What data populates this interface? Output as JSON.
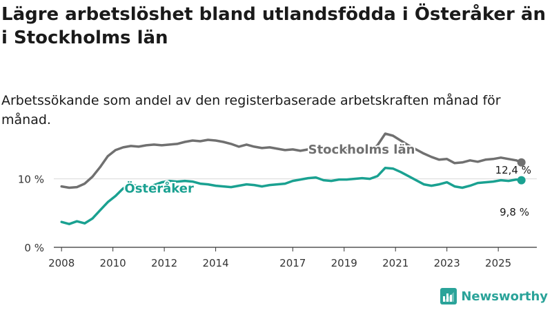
{
  "title": "Lägre arbetslöshet bland utlandsfödda i Österåker än i Stockholms län",
  "subtitle": "Arbetssökande som andel av den registerbaserade arbetskraften månad för månad.",
  "brand": {
    "name": "Newsworthy",
    "icon": "bar-chart-logo-icon"
  },
  "colors": {
    "stockholm": "#707070",
    "osteraker": "#1aa191",
    "grid": "#d9d9d9",
    "axis": "#333333"
  },
  "chart_data": {
    "type": "line",
    "xlim": [
      2007.7,
      2026.5
    ],
    "ylim": [
      0,
      16
    ],
    "x_ticks": [
      {
        "value": 2008,
        "label": "2008"
      },
      {
        "value": 2010,
        "label": "2010"
      },
      {
        "value": 2012,
        "label": "2012"
      },
      {
        "value": 2014,
        "label": "2014"
      },
      {
        "value": 2017,
        "label": "2017"
      },
      {
        "value": 2019,
        "label": "2019"
      },
      {
        "value": 2021,
        "label": "2021"
      },
      {
        "value": 2023,
        "label": "2023"
      },
      {
        "value": 2025,
        "label": "2025"
      }
    ],
    "y_ticks": [
      {
        "value": 0,
        "label": "0 %"
      },
      {
        "value": 10,
        "label": "10 %"
      }
    ],
    "series": [
      {
        "name": "Stockholms län",
        "label": "Stockholms län",
        "end_label": "12,4 %",
        "color_key": "stockholm",
        "x": [
          2008.0,
          2008.3,
          2008.6,
          2008.9,
          2009.2,
          2009.5,
          2009.8,
          2010.1,
          2010.4,
          2010.7,
          2011.0,
          2011.3,
          2011.6,
          2011.9,
          2012.2,
          2012.5,
          2012.8,
          2013.1,
          2013.4,
          2013.7,
          2014.0,
          2014.3,
          2014.6,
          2014.9,
          2015.2,
          2015.5,
          2015.8,
          2016.1,
          2016.4,
          2016.7,
          2017.0,
          2017.3,
          2017.6,
          2017.9,
          2018.2,
          2018.5,
          2018.8,
          2019.1,
          2019.4,
          2019.7,
          2020.0,
          2020.3,
          2020.6,
          2020.9,
          2021.2,
          2021.5,
          2021.8,
          2022.1,
          2022.4,
          2022.7,
          2023.0,
          2023.3,
          2023.6,
          2023.9,
          2024.2,
          2024.5,
          2024.8,
          2025.1,
          2025.4,
          2025.7,
          2025.9
        ],
        "y": [
          8.9,
          8.7,
          8.8,
          9.3,
          10.3,
          11.7,
          13.3,
          14.2,
          14.6,
          14.8,
          14.7,
          14.9,
          15.0,
          14.9,
          15.0,
          15.1,
          15.4,
          15.6,
          15.5,
          15.7,
          15.6,
          15.4,
          15.1,
          14.7,
          15.0,
          14.7,
          14.5,
          14.6,
          14.4,
          14.2,
          14.3,
          14.1,
          14.3,
          14.4,
          14.5,
          14.4,
          14.6,
          14.3,
          14.1,
          13.9,
          14.0,
          14.9,
          16.6,
          16.3,
          15.6,
          14.9,
          14.3,
          13.7,
          13.2,
          12.8,
          12.9,
          12.3,
          12.4,
          12.7,
          12.5,
          12.8,
          12.9,
          13.1,
          12.9,
          12.7,
          12.4
        ]
      },
      {
        "name": "Österåker",
        "label": "Österåker",
        "end_label": "9,8 %",
        "color_key": "osteraker",
        "x": [
          2008.0,
          2008.3,
          2008.6,
          2008.9,
          2009.2,
          2009.5,
          2009.8,
          2010.1,
          2010.4,
          2010.7,
          2011.0,
          2011.3,
          2011.6,
          2011.9,
          2012.2,
          2012.5,
          2012.8,
          2013.1,
          2013.4,
          2013.7,
          2014.0,
          2014.3,
          2014.6,
          2014.9,
          2015.2,
          2015.5,
          2015.8,
          2016.1,
          2016.4,
          2016.7,
          2017.0,
          2017.3,
          2017.6,
          2017.9,
          2018.2,
          2018.5,
          2018.8,
          2019.1,
          2019.4,
          2019.7,
          2020.0,
          2020.3,
          2020.6,
          2020.9,
          2021.2,
          2021.5,
          2021.8,
          2022.1,
          2022.4,
          2022.7,
          2023.0,
          2023.3,
          2023.6,
          2023.9,
          2024.2,
          2024.5,
          2024.8,
          2025.1,
          2025.4,
          2025.7,
          2025.9
        ],
        "y": [
          3.7,
          3.4,
          3.8,
          3.5,
          4.2,
          5.4,
          6.6,
          7.5,
          8.6,
          9.2,
          8.9,
          8.7,
          9.1,
          9.5,
          9.7,
          9.6,
          9.7,
          9.6,
          9.3,
          9.2,
          9.0,
          8.9,
          8.8,
          9.0,
          9.2,
          9.1,
          8.9,
          9.1,
          9.2,
          9.3,
          9.7,
          9.9,
          10.1,
          10.2,
          9.8,
          9.7,
          9.9,
          9.9,
          10.0,
          10.1,
          10.0,
          10.4,
          11.6,
          11.5,
          11.0,
          10.4,
          9.8,
          9.2,
          9.0,
          9.2,
          9.5,
          8.9,
          8.7,
          9.0,
          9.4,
          9.5,
          9.6,
          9.8,
          9.7,
          9.9,
          9.8
        ]
      }
    ]
  }
}
